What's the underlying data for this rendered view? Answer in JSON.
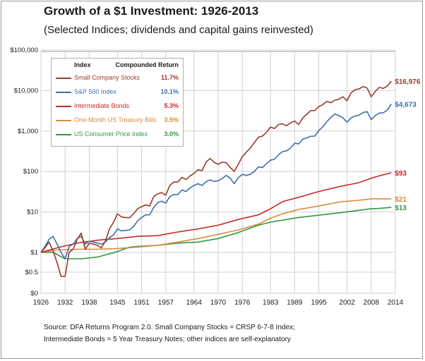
{
  "title": "Growth of a $1 Investment: 1926-2013",
  "subtitle": "(Selected Indices; dividends and capital gains reinvested)",
  "legend": {
    "col_index": "Index",
    "col_return": "Compounded Return"
  },
  "source_lines": [
    "Source: DFA Returns Program 2.0. Small Company Stocks = CRSP 6-7-8 Index;",
    "Intermediate Bonds = 5 Year Treasury Notes; other indices are self-explanatory"
  ],
  "chart_data": {
    "type": "line",
    "title": "Growth of a $1 Investment: 1926-2013",
    "xlabel": "",
    "ylabel": "",
    "y_scale": "log",
    "ylim": [
      0,
      100000
    ],
    "xlim": [
      1926,
      2014
    ],
    "grid": true,
    "legend_position": "top-left",
    "x_ticks": [
      "1926",
      "1932",
      "1938",
      "1945",
      "1951",
      "1957",
      "1964",
      "1970",
      "1976",
      "1983",
      "1989",
      "1995",
      "2002",
      "2008",
      "2014"
    ],
    "y_ticks": [
      "$100,000",
      "$10,000",
      "$1,000",
      "$100",
      "$10",
      "$1",
      "$0.5",
      "$0"
    ],
    "series": [
      {
        "name": "Small Company Stocks",
        "return": "11.7%",
        "end_label": "$16,976",
        "color": "#9b3a2c",
        "points": [
          [
            1926,
            1
          ],
          [
            1927,
            1.3
          ],
          [
            1928,
            1.8
          ],
          [
            1929,
            1.1
          ],
          [
            1930,
            0.7
          ],
          [
            1931,
            0.4
          ],
          [
            1932,
            0.4
          ],
          [
            1933,
            1.0
          ],
          [
            1934,
            1.2
          ],
          [
            1935,
            2.1
          ],
          [
            1936,
            3.0
          ],
          [
            1937,
            1.2
          ],
          [
            1938,
            1.7
          ],
          [
            1939,
            1.6
          ],
          [
            1940,
            1.5
          ],
          [
            1941,
            1.3
          ],
          [
            1942,
            1.9
          ],
          [
            1943,
            3.8
          ],
          [
            1944,
            5.5
          ],
          [
            1945,
            9
          ],
          [
            1946,
            7.5
          ],
          [
            1947,
            7.3
          ],
          [
            1948,
            7.2
          ],
          [
            1949,
            9
          ],
          [
            1950,
            12
          ],
          [
            1951,
            13.5
          ],
          [
            1952,
            15
          ],
          [
            1953,
            14
          ],
          [
            1954,
            24
          ],
          [
            1955,
            28
          ],
          [
            1956,
            30
          ],
          [
            1957,
            26
          ],
          [
            1958,
            45
          ],
          [
            1959,
            55
          ],
          [
            1960,
            55
          ],
          [
            1961,
            72
          ],
          [
            1962,
            63
          ],
          [
            1963,
            77
          ],
          [
            1964,
            90
          ],
          [
            1965,
            110
          ],
          [
            1966,
            105
          ],
          [
            1967,
            170
          ],
          [
            1968,
            210
          ],
          [
            1969,
            170
          ],
          [
            1970,
            150
          ],
          [
            1971,
            170
          ],
          [
            1972,
            165
          ],
          [
            1973,
            125
          ],
          [
            1974,
            100
          ],
          [
            1975,
            150
          ],
          [
            1976,
            230
          ],
          [
            1977,
            300
          ],
          [
            1978,
            380
          ],
          [
            1979,
            520
          ],
          [
            1980,
            700
          ],
          [
            1981,
            750
          ],
          [
            1982,
            930
          ],
          [
            1983,
            1250
          ],
          [
            1984,
            1150
          ],
          [
            1985,
            1450
          ],
          [
            1986,
            1500
          ],
          [
            1987,
            1350
          ],
          [
            1988,
            1600
          ],
          [
            1989,
            1750
          ],
          [
            1990,
            1450
          ],
          [
            1991,
            2100
          ],
          [
            1992,
            2600
          ],
          [
            1993,
            3200
          ],
          [
            1994,
            3200
          ],
          [
            1995,
            4000
          ],
          [
            1996,
            4500
          ],
          [
            1997,
            5400
          ],
          [
            1998,
            5000
          ],
          [
            1999,
            5800
          ],
          [
            2000,
            6100
          ],
          [
            2001,
            7000
          ],
          [
            2002,
            5600
          ],
          [
            2003,
            8800
          ],
          [
            2004,
            10500
          ],
          [
            2005,
            11000
          ],
          [
            2006,
            12500
          ],
          [
            2007,
            11500
          ],
          [
            2008,
            7000
          ],
          [
            2009,
            9500
          ],
          [
            2010,
            12000
          ],
          [
            2011,
            11300
          ],
          [
            2012,
            13000
          ],
          [
            2013,
            16976
          ]
        ]
      },
      {
        "name": "S&P 500 Index",
        "return": "10.1%",
        "end_label": "$4,673",
        "color": "#3e6fa8",
        "points": [
          [
            1926,
            1
          ],
          [
            1927,
            1.4
          ],
          [
            1928,
            2.1
          ],
          [
            1929,
            2.5
          ],
          [
            1930,
            1.6
          ],
          [
            1931,
            1.0
          ],
          [
            1932,
            0.8
          ],
          [
            1933,
            1.4
          ],
          [
            1934,
            1.6
          ],
          [
            1935,
            2.2
          ],
          [
            1936,
            2.5
          ],
          [
            1937,
            1.6
          ],
          [
            1938,
            1.9
          ],
          [
            1939,
            1.8
          ],
          [
            1940,
            1.7
          ],
          [
            1941,
            1.6
          ],
          [
            1942,
            1.8
          ],
          [
            1943,
            2.3
          ],
          [
            1944,
            2.7
          ],
          [
            1945,
            3.8
          ],
          [
            1946,
            3.4
          ],
          [
            1947,
            3.5
          ],
          [
            1948,
            3.6
          ],
          [
            1949,
            4.4
          ],
          [
            1950,
            6
          ],
          [
            1951,
            7.3
          ],
          [
            1952,
            8.5
          ],
          [
            1953,
            8.5
          ],
          [
            1954,
            13
          ],
          [
            1955,
            17
          ],
          [
            1956,
            18.5
          ],
          [
            1957,
            16.5
          ],
          [
            1958,
            24
          ],
          [
            1959,
            27
          ],
          [
            1960,
            27
          ],
          [
            1961,
            35
          ],
          [
            1962,
            32
          ],
          [
            1963,
            39
          ],
          [
            1964,
            45
          ],
          [
            1965,
            50
          ],
          [
            1966,
            45
          ],
          [
            1967,
            56
          ],
          [
            1968,
            62
          ],
          [
            1969,
            57
          ],
          [
            1970,
            59
          ],
          [
            1971,
            67
          ],
          [
            1972,
            80
          ],
          [
            1973,
            68
          ],
          [
            1974,
            50
          ],
          [
            1975,
            70
          ],
          [
            1976,
            85
          ],
          [
            1977,
            80
          ],
          [
            1978,
            85
          ],
          [
            1979,
            100
          ],
          [
            1980,
            130
          ],
          [
            1981,
            125
          ],
          [
            1982,
            155
          ],
          [
            1983,
            190
          ],
          [
            1984,
            200
          ],
          [
            1985,
            260
          ],
          [
            1986,
            310
          ],
          [
            1987,
            325
          ],
          [
            1988,
            380
          ],
          [
            1989,
            500
          ],
          [
            1990,
            480
          ],
          [
            1991,
            630
          ],
          [
            1992,
            675
          ],
          [
            1993,
            740
          ],
          [
            1994,
            750
          ],
          [
            1995,
            1030
          ],
          [
            1996,
            1270
          ],
          [
            1997,
            1700
          ],
          [
            1998,
            2180
          ],
          [
            1999,
            2640
          ],
          [
            2000,
            2400
          ],
          [
            2001,
            2120
          ],
          [
            2002,
            1650
          ],
          [
            2003,
            2120
          ],
          [
            2004,
            2350
          ],
          [
            2005,
            2470
          ],
          [
            2006,
            2860
          ],
          [
            2007,
            3010
          ],
          [
            2008,
            1900
          ],
          [
            2009,
            2400
          ],
          [
            2010,
            2770
          ],
          [
            2011,
            2830
          ],
          [
            2012,
            3280
          ],
          [
            2013,
            4673
          ]
        ]
      },
      {
        "name": "Intermediate Bonds",
        "return": "5.3%",
        "end_label": "$93",
        "color": "#c8282a",
        "points": [
          [
            1926,
            1
          ],
          [
            1930,
            1.3
          ],
          [
            1935,
            1.7
          ],
          [
            1940,
            2.0
          ],
          [
            1945,
            2.2
          ],
          [
            1950,
            2.5
          ],
          [
            1955,
            2.6
          ],
          [
            1960,
            3.2
          ],
          [
            1965,
            3.8
          ],
          [
            1970,
            4.7
          ],
          [
            1975,
            6.5
          ],
          [
            1980,
            8.5
          ],
          [
            1983,
            12
          ],
          [
            1986,
            18
          ],
          [
            1990,
            23
          ],
          [
            1995,
            32
          ],
          [
            2000,
            42
          ],
          [
            2005,
            53
          ],
          [
            2008,
            68
          ],
          [
            2010,
            78
          ],
          [
            2013,
            93
          ]
        ]
      },
      {
        "name": "One-Month US Treasury Bills",
        "return": "3.5%",
        "end_label": "$21",
        "color": "#d98a3a",
        "points": [
          [
            1926,
            1
          ],
          [
            1930,
            1.15
          ],
          [
            1935,
            1.2
          ],
          [
            1940,
            1.2
          ],
          [
            1945,
            1.25
          ],
          [
            1950,
            1.35
          ],
          [
            1955,
            1.5
          ],
          [
            1960,
            1.8
          ],
          [
            1965,
            2.2
          ],
          [
            1970,
            2.8
          ],
          [
            1975,
            3.6
          ],
          [
            1980,
            5.0
          ],
          [
            1983,
            7.0
          ],
          [
            1986,
            9.0
          ],
          [
            1990,
            11.5
          ],
          [
            1995,
            14
          ],
          [
            2000,
            17.5
          ],
          [
            2005,
            19.5
          ],
          [
            2008,
            21
          ],
          [
            2013,
            21
          ]
        ]
      },
      {
        "name": "US Consumer Price Index",
        "return": "3.0%",
        "end_label": "$13",
        "color": "#2e9a44",
        "points": [
          [
            1926,
            1
          ],
          [
            1929,
            1.0
          ],
          [
            1932,
            0.8
          ],
          [
            1936,
            0.8
          ],
          [
            1940,
            0.85
          ],
          [
            1945,
            1.05
          ],
          [
            1948,
            1.35
          ],
          [
            1950,
            1.4
          ],
          [
            1955,
            1.5
          ],
          [
            1960,
            1.7
          ],
          [
            1965,
            1.8
          ],
          [
            1970,
            2.2
          ],
          [
            1975,
            3.1
          ],
          [
            1980,
            4.7
          ],
          [
            1983,
            5.6
          ],
          [
            1990,
            7.3
          ],
          [
            1995,
            8.3
          ],
          [
            2000,
            9.5
          ],
          [
            2005,
            11.0
          ],
          [
            2008,
            12.0
          ],
          [
            2010,
            12.2
          ],
          [
            2013,
            13
          ]
        ]
      }
    ]
  }
}
